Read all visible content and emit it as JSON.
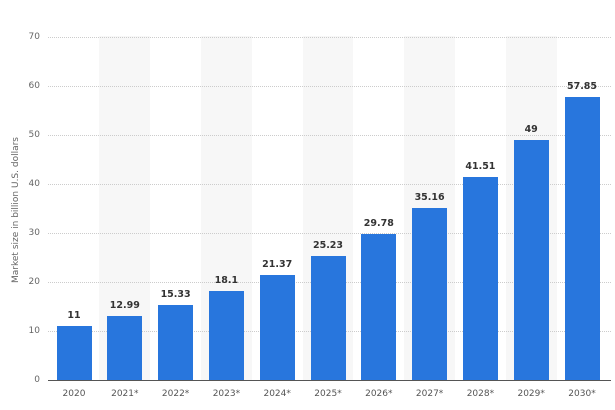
{
  "chart_data": {
    "type": "bar",
    "title": "",
    "xlabel": "",
    "ylabel": "Market size in billion U.S. dollars",
    "ylim": [
      0,
      70
    ],
    "yticks": [
      0,
      10,
      20,
      30,
      40,
      50,
      60,
      70
    ],
    "grid": true,
    "legend": null,
    "categories": [
      "2020",
      "2021*",
      "2022*",
      "2023*",
      "2024*",
      "2025*",
      "2026*",
      "2027*",
      "2028*",
      "2029*",
      "2030*"
    ],
    "values": [
      11,
      12.99,
      15.33,
      18.1,
      21.37,
      25.23,
      29.78,
      35.16,
      41.51,
      49,
      57.85
    ],
    "value_labels": [
      "11",
      "12.99",
      "15.33",
      "18.1",
      "21.37",
      "25.23",
      "29.78",
      "35.16",
      "41.51",
      "49",
      "57.85"
    ],
    "bar_color": "#2876dd"
  }
}
